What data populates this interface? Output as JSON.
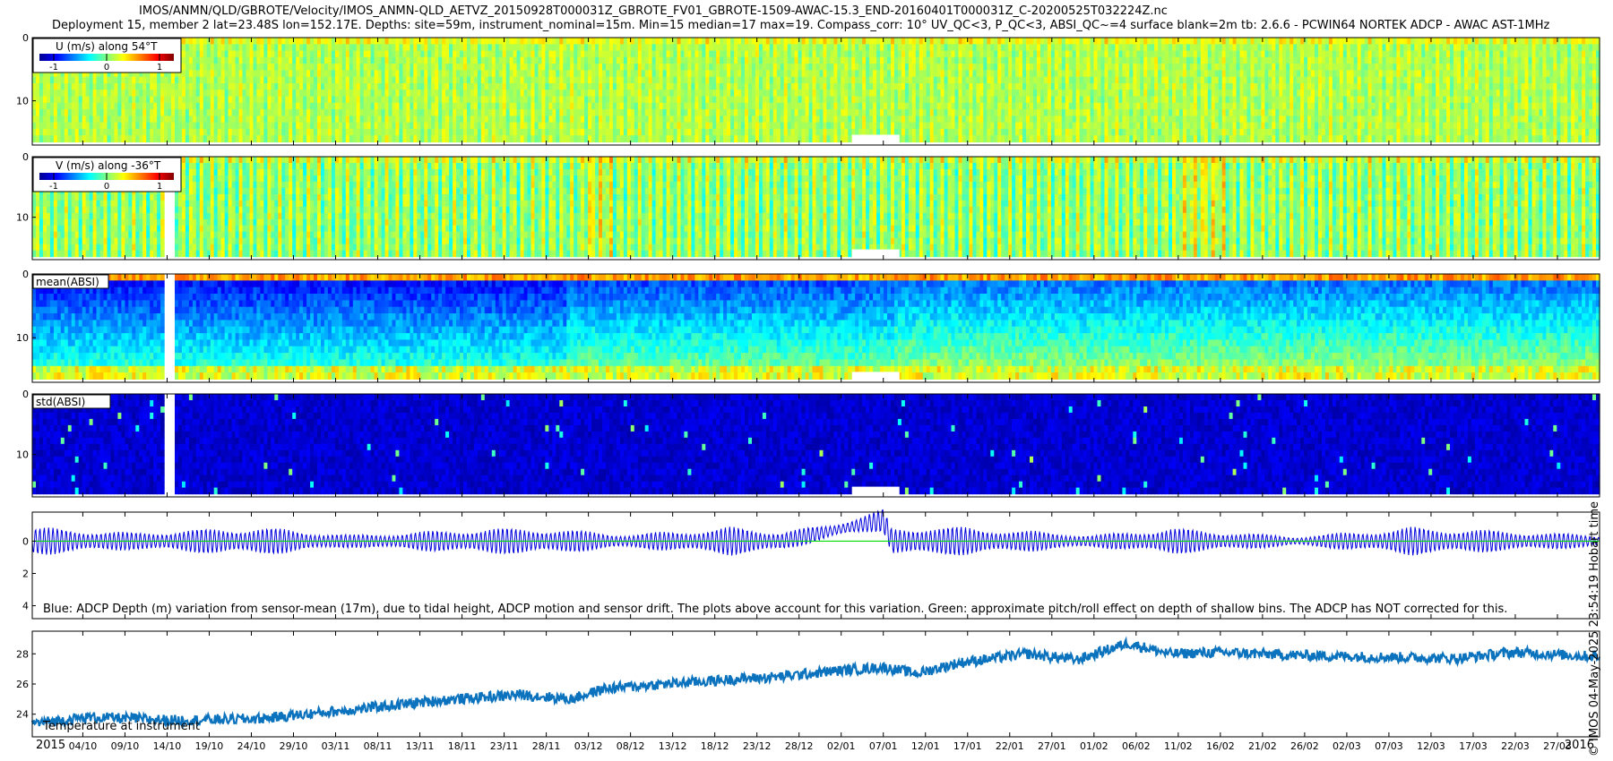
{
  "title_lines": [
    "IMOS/ANMN/QLD/GBROTE/Velocity/IMOS_ANMN-QLD_AETVZ_20150928T000031Z_GBROTE_FV01_GBROTE-1509-AWAC-15.3_END-20160401T000031Z_C-20200525T032224Z.nc",
    "Deployment 15, member 2 lat=23.48S lon=152.17E. Depths: site=59m, instrument_nominal=15m. Min=15 median=17 max=19. Compass_corr: 10° UV_QC<3, P_QC<3, ABSI_QC~=4 surface blank=2m tb: 2.6.6 - PCWIN64 NORTEK ADCP - AWAC AST-1MHz"
  ],
  "timestamp": "© IMOS 04-May-2025 23:54:19 Hobart time",
  "colors": {
    "depth_line": "#0000dd",
    "pitch_roll_line": "#00dd00",
    "temperature_line": "#0b72bd"
  },
  "chart_data": [
    {
      "type": "heatmap",
      "panel": "u-velocity",
      "colorbar_label": "U (m/s) along 54°T",
      "colorbar_ticks": [
        "-1",
        "0",
        "1"
      ],
      "colormap": "jet",
      "clim": [
        -1.3,
        1.3
      ],
      "ylim": [
        0,
        17
      ],
      "y_reversed": true,
      "y_ticks": [
        {
          "value": 0,
          "label": "0"
        },
        {
          "value": 10,
          "label": "10"
        }
      ]
    },
    {
      "type": "heatmap",
      "panel": "v-velocity",
      "colorbar_label": "V (m/s) along -36°T",
      "colorbar_ticks": [
        "-1",
        "0",
        "1"
      ],
      "colormap": "jet",
      "clim": [
        -1.3,
        1.3
      ],
      "ylim": [
        0,
        17
      ],
      "y_reversed": true,
      "y_ticks": [
        {
          "value": 0,
          "label": "0"
        },
        {
          "value": 10,
          "label": "10"
        }
      ]
    },
    {
      "type": "heatmap",
      "panel": "mean-absi",
      "label": "mean(ABSI)",
      "colormap": "jet",
      "ylim": [
        0,
        17
      ],
      "y_reversed": true,
      "y_ticks": [
        {
          "value": 0,
          "label": "0"
        },
        {
          "value": 10,
          "label": "10"
        }
      ]
    },
    {
      "type": "heatmap",
      "panel": "std-absi",
      "label": "std(ABSI)",
      "colormap": "jet",
      "ylim": [
        0,
        17
      ],
      "y_reversed": true,
      "y_ticks": [
        {
          "value": 0,
          "label": "0"
        },
        {
          "value": 10,
          "label": "10"
        }
      ]
    },
    {
      "type": "line",
      "panel": "adcp-depth",
      "annotation": "Blue: ADCP Depth (m) variation from sensor-mean (17m), due to tidal height, ADCP motion and sensor drift. The plots above account for this variation. Green: approximate pitch/roll effect on depth of shallow bins. The ADCP has NOT corrected for this.",
      "ylim": [
        -1.8,
        4.8
      ],
      "y_reversed": true,
      "y_ticks": [
        {
          "value": 0,
          "label": "0"
        },
        {
          "value": 2,
          "label": "2"
        },
        {
          "value": 4,
          "label": "4"
        }
      ],
      "x_start": "2015-09-28",
      "x_end": "2016-04-01",
      "series": [
        {
          "color_key": "depth_line",
          "envelope": [
            {
              "date": "2015-09-28",
              "amp": 0.9
            },
            {
              "date": "2015-10-10",
              "amp": 0.55
            },
            {
              "date": "2015-10-15",
              "amp": 0.7
            },
            {
              "date": "2015-10-25",
              "amp": 0.9
            },
            {
              "date": "2015-11-05",
              "amp": 0.4
            },
            {
              "date": "2015-11-20",
              "amp": 0.8
            },
            {
              "date": "2015-11-27",
              "amp": 0.85
            },
            {
              "date": "2015-12-08",
              "amp": 0.45
            },
            {
              "date": "2015-12-20",
              "amp": 0.9
            },
            {
              "date": "2016-01-01",
              "amp": 0.4
            },
            {
              "date": "2016-01-12",
              "amp": 1.0
            },
            {
              "date": "2016-01-20",
              "amp": 0.8
            },
            {
              "date": "2016-02-01",
              "amp": 0.4
            },
            {
              "date": "2016-02-10",
              "amp": 0.85
            },
            {
              "date": "2016-02-25",
              "amp": 0.3
            },
            {
              "date": "2016-03-10",
              "amp": 0.9
            },
            {
              "date": "2016-04-01",
              "amp": 0.4
            }
          ],
          "offset": [
            {
              "date": "2015-09-28",
              "value": 0.0
            },
            {
              "date": "2015-12-26",
              "value": 0.0
            },
            {
              "date": "2016-01-07",
              "value": -1.3
            },
            {
              "date": "2016-01-08",
              "value": 0.0
            },
            {
              "date": "2016-04-01",
              "value": 0.0
            }
          ]
        },
        {
          "color_key": "pitch_roll_line",
          "values": [
            {
              "date": "2015-09-28",
              "value": 0.0
            },
            {
              "date": "2016-04-01",
              "value": 0.0
            }
          ]
        }
      ]
    },
    {
      "type": "line",
      "panel": "temperature",
      "label": "Temperature at instrument",
      "ylim": [
        22.5,
        29.5
      ],
      "y_ticks": [
        {
          "value": 24,
          "label": "24"
        },
        {
          "value": 26,
          "label": "26"
        },
        {
          "value": 28,
          "label": "28"
        }
      ],
      "x_start": "2015-09-28",
      "x_end": "2016-04-01",
      "series": [
        {
          "color_key": "temperature_line",
          "noise_band": 0.35,
          "values": [
            {
              "date": "2015-09-28",
              "value": 23.4
            },
            {
              "date": "2015-10-05",
              "value": 23.8
            },
            {
              "date": "2015-10-15",
              "value": 23.6
            },
            {
              "date": "2015-10-25",
              "value": 23.7
            },
            {
              "date": "2015-11-05",
              "value": 24.3
            },
            {
              "date": "2015-11-15",
              "value": 24.9
            },
            {
              "date": "2015-11-25",
              "value": 25.3
            },
            {
              "date": "2015-12-01",
              "value": 25.0
            },
            {
              "date": "2015-12-05",
              "value": 25.7
            },
            {
              "date": "2015-12-12",
              "value": 26.0
            },
            {
              "date": "2015-12-20",
              "value": 26.3
            },
            {
              "date": "2015-12-26",
              "value": 26.5
            },
            {
              "date": "2016-01-02",
              "value": 26.9
            },
            {
              "date": "2016-01-07",
              "value": 27.1
            },
            {
              "date": "2016-01-11",
              "value": 26.7
            },
            {
              "date": "2016-01-16",
              "value": 27.4
            },
            {
              "date": "2016-01-24",
              "value": 28.0
            },
            {
              "date": "2016-01-30",
              "value": 27.6
            },
            {
              "date": "2016-02-05",
              "value": 28.7
            },
            {
              "date": "2016-02-10",
              "value": 28.0
            },
            {
              "date": "2016-02-16",
              "value": 28.1
            },
            {
              "date": "2016-02-25",
              "value": 27.9
            },
            {
              "date": "2016-03-05",
              "value": 27.8
            },
            {
              "date": "2016-03-15",
              "value": 27.7
            },
            {
              "date": "2016-03-22",
              "value": 28.1
            },
            {
              "date": "2016-04-01",
              "value": 27.8
            }
          ]
        }
      ]
    }
  ],
  "time_axis": {
    "start": "2015-09-28",
    "end": "2016-04-01",
    "year_labels": [
      {
        "date": "2015-09-28",
        "text": "2015"
      },
      {
        "date": "2016-04-01",
        "text": "2016"
      }
    ],
    "ticks": [
      {
        "date": "2015-10-04",
        "label": "04/10"
      },
      {
        "date": "2015-10-09",
        "label": "09/10"
      },
      {
        "date": "2015-10-14",
        "label": "14/10"
      },
      {
        "date": "2015-10-19",
        "label": "19/10"
      },
      {
        "date": "2015-10-24",
        "label": "24/10"
      },
      {
        "date": "2015-10-29",
        "label": "29/10"
      },
      {
        "date": "2015-11-03",
        "label": "03/11"
      },
      {
        "date": "2015-11-08",
        "label": "08/11"
      },
      {
        "date": "2015-11-13",
        "label": "13/11"
      },
      {
        "date": "2015-11-18",
        "label": "18/11"
      },
      {
        "date": "2015-11-23",
        "label": "23/11"
      },
      {
        "date": "2015-11-28",
        "label": "28/11"
      },
      {
        "date": "2015-12-03",
        "label": "03/12"
      },
      {
        "date": "2015-12-08",
        "label": "08/12"
      },
      {
        "date": "2015-12-13",
        "label": "13/12"
      },
      {
        "date": "2015-12-18",
        "label": "18/12"
      },
      {
        "date": "2015-12-23",
        "label": "23/12"
      },
      {
        "date": "2015-12-28",
        "label": "28/12"
      },
      {
        "date": "2016-01-02",
        "label": "02/01"
      },
      {
        "date": "2016-01-07",
        "label": "07/01"
      },
      {
        "date": "2016-01-12",
        "label": "12/01"
      },
      {
        "date": "2016-01-17",
        "label": "17/01"
      },
      {
        "date": "2016-01-22",
        "label": "22/01"
      },
      {
        "date": "2016-01-27",
        "label": "27/01"
      },
      {
        "date": "2016-02-01",
        "label": "01/02"
      },
      {
        "date": "2016-02-06",
        "label": "06/02"
      },
      {
        "date": "2016-02-11",
        "label": "11/02"
      },
      {
        "date": "2016-02-16",
        "label": "16/02"
      },
      {
        "date": "2016-02-21",
        "label": "21/02"
      },
      {
        "date": "2016-02-26",
        "label": "26/02"
      },
      {
        "date": "2016-03-02",
        "label": "02/03"
      },
      {
        "date": "2016-03-07",
        "label": "07/03"
      },
      {
        "date": "2016-03-12",
        "label": "12/03"
      },
      {
        "date": "2016-03-17",
        "label": "17/03"
      },
      {
        "date": "2016-03-22",
        "label": "22/03"
      },
      {
        "date": "2016-03-27",
        "label": "27/03"
      }
    ]
  }
}
